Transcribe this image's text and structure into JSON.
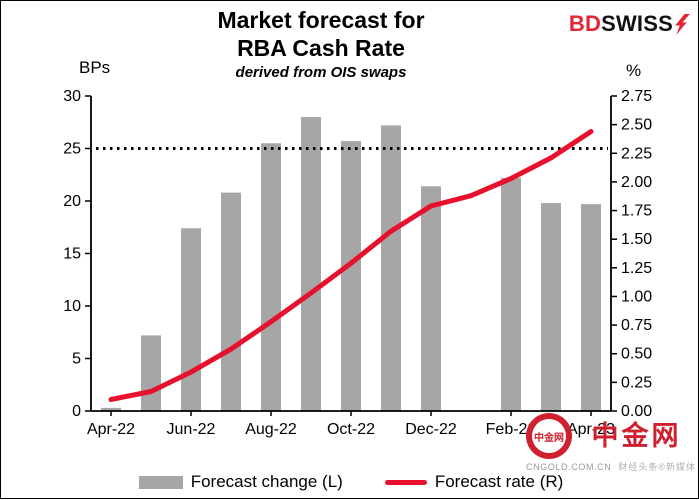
{
  "header": {
    "title_line1": "Market forecast for",
    "title_line2": "RBA Cash Rate",
    "subtitle": "derived from OIS swaps"
  },
  "brand": {
    "bd": "BD",
    "swiss": "SWISS",
    "accent_color": "#e32636"
  },
  "legend": {
    "bar_label": "Forecast change (L)",
    "line_label": "Forecast rate (R)"
  },
  "watermark": {
    "seal_text": "中金网",
    "brand": "中金网",
    "domain": "CNGOLD.COM.CN",
    "tagline": "财经头条®新媒体",
    "color": "#cf2030"
  },
  "colors": {
    "bar": "#a6a6a6",
    "line": "#e8112d",
    "reference": "#000000"
  },
  "chart_data": {
    "type": "bar",
    "title": "Market forecast for RBA Cash Rate",
    "subtitle": "derived from OIS swaps",
    "categories": [
      "Apr-22",
      "May-22",
      "Jun-22",
      "Jul-22",
      "Aug-22",
      "Sep-22",
      "Oct-22",
      "Nov-22",
      "Dec-22",
      "Jan-23",
      "Feb-23",
      "Mar-23",
      "Apr-23"
    ],
    "x_tick_labels": [
      "Apr-22",
      "Jun-22",
      "Aug-22",
      "Oct-22",
      "Dec-22",
      "Feb-23",
      "Apr-23"
    ],
    "series": [
      {
        "name": "Forecast change (L)",
        "type": "bar",
        "axis": "left",
        "unit": "BPs",
        "color": "#a6a6a6",
        "values": [
          0.3,
          7.2,
          17.4,
          20.8,
          25.5,
          28.0,
          25.7,
          27.2,
          21.4,
          null,
          22.2,
          19.8,
          19.7
        ]
      },
      {
        "name": "Forecast rate (R)",
        "type": "line",
        "axis": "right",
        "unit": "%",
        "color": "#e8112d",
        "values": [
          0.1,
          0.17,
          0.34,
          0.54,
          0.78,
          1.03,
          1.29,
          1.57,
          1.79,
          1.88,
          2.03,
          2.21,
          2.44
        ]
      }
    ],
    "left_axis": {
      "label": "BPs",
      "min": 0,
      "max": 30,
      "step": 5
    },
    "right_axis": {
      "label": "%",
      "min": 0,
      "max": 2.75,
      "step": 0.25
    },
    "reference_line": {
      "axis": "left",
      "value": 25,
      "style": "dotted",
      "color": "#000000"
    },
    "grid": false,
    "legend_position": "bottom"
  }
}
